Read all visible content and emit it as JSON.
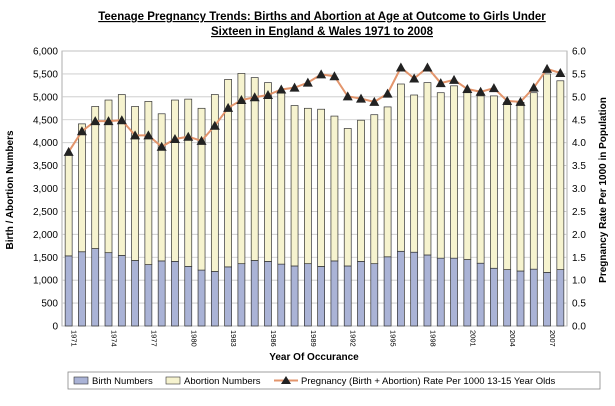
{
  "chart_data": {
    "type": "bar",
    "title_line1": "Teenage Pregnancy Trends: Births and Abortion at Age at Outcome to Girls Under",
    "title_line2": "Sixteen in England & Wales 1971 to 2008",
    "xlabel": "Year Of Occurance",
    "ylabel": "Birth / Abortion Numbers",
    "y2label": "Pregnancy Rate Per 1000 in Population",
    "ylim": [
      0,
      6000
    ],
    "y2lim": [
      0,
      6.0
    ],
    "ytick_step": 500,
    "y2tick_step": 0.5,
    "grid": true,
    "legend_position": "bottom",
    "stacked": true,
    "categories": [
      1971,
      1972,
      1973,
      1974,
      1975,
      1976,
      1977,
      1978,
      1979,
      1980,
      1981,
      1982,
      1983,
      1984,
      1985,
      1986,
      1987,
      1988,
      1989,
      1990,
      1991,
      1992,
      1993,
      1994,
      1995,
      1996,
      1997,
      1998,
      1999,
      2000,
      2001,
      2002,
      2003,
      2004,
      2005,
      2006,
      2007,
      2008
    ],
    "xtick_labels": [
      "1971",
      "1974",
      "1977",
      "1980",
      "1983",
      "1986",
      "1989",
      "1992",
      "1995",
      "1998",
      "2001",
      "2004",
      "2007"
    ],
    "series": [
      {
        "name": "Birth Numbers",
        "type": "bar",
        "axis": "left",
        "color": "#aab3d6",
        "values": [
          1530,
          1620,
          1690,
          1600,
          1540,
          1430,
          1340,
          1420,
          1410,
          1300,
          1220,
          1190,
          1290,
          1360,
          1430,
          1410,
          1350,
          1310,
          1360,
          1300,
          1420,
          1310,
          1410,
          1360,
          1510,
          1630,
          1610,
          1550,
          1480,
          1480,
          1450,
          1370,
          1260,
          1230,
          1200,
          1240,
          1170,
          1230
        ]
      },
      {
        "name": "Abortion Numbers",
        "type": "bar",
        "axis": "left",
        "color": "#f6f3cf",
        "values": [
          2210,
          2790,
          3100,
          3330,
          3510,
          3360,
          3560,
          3210,
          3520,
          3650,
          3530,
          3860,
          4090,
          4150,
          3990,
          3900,
          3730,
          3500,
          3390,
          3430,
          3160,
          3000,
          3080,
          3250,
          3270,
          3650,
          3430,
          3760,
          3610,
          3760,
          3640,
          3650,
          3760,
          3650,
          3680,
          3850,
          4330,
          4120
        ]
      },
      {
        "name": "Pregnancy (Birth + Abortion)  Rate Per 1000 13-15 Year Olds",
        "type": "line",
        "axis": "right",
        "color": "#e3956c",
        "marker": "triangle",
        "values": [
          3.8,
          4.25,
          4.47,
          4.47,
          4.49,
          4.16,
          4.16,
          3.91,
          4.08,
          4.13,
          4.04,
          4.37,
          4.76,
          4.93,
          4.99,
          5.04,
          5.16,
          5.2,
          5.31,
          5.49,
          5.45,
          5.01,
          4.96,
          4.89,
          5.07,
          5.64,
          5.4,
          5.64,
          5.3,
          5.37,
          5.17,
          5.11,
          5.19,
          4.91,
          4.89,
          5.2,
          5.61,
          5.52
        ]
      }
    ]
  }
}
